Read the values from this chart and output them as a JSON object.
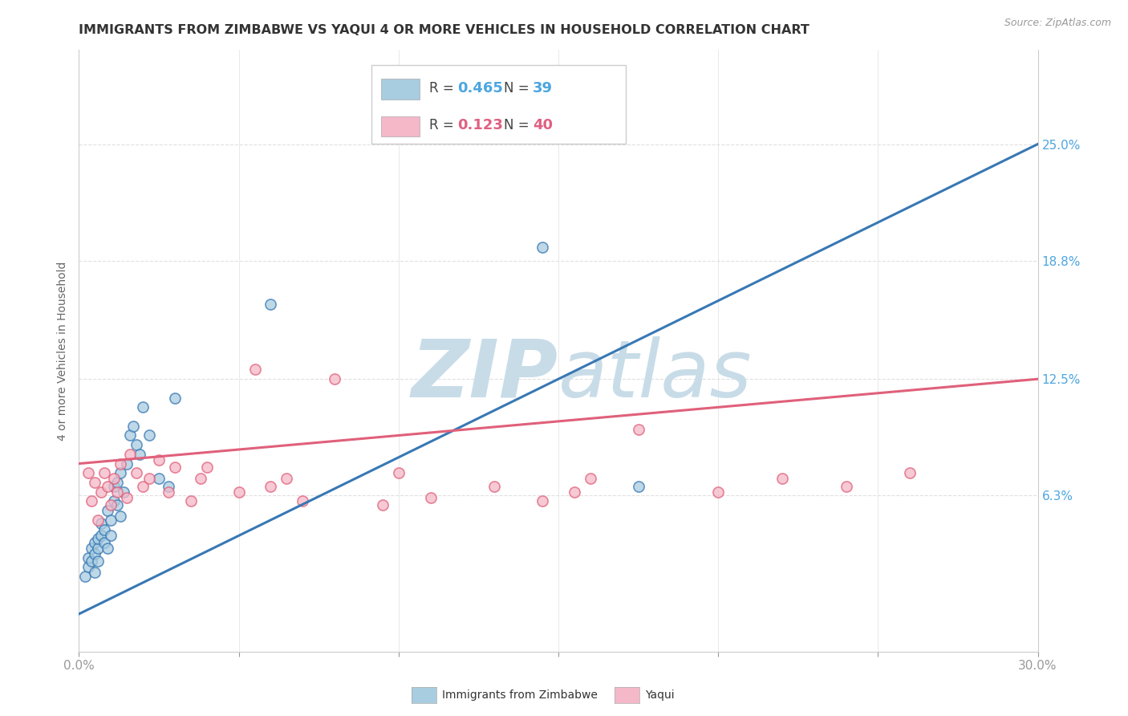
{
  "title": "IMMIGRANTS FROM ZIMBABWE VS YAQUI 4 OR MORE VEHICLES IN HOUSEHOLD CORRELATION CHART",
  "source": "Source: ZipAtlas.com",
  "xlabel": "",
  "ylabel": "4 or more Vehicles in Household",
  "xlim": [
    0.0,
    0.3
  ],
  "ylim": [
    -0.02,
    0.3
  ],
  "xticks": [
    0.0,
    0.05,
    0.1,
    0.15,
    0.2,
    0.25,
    0.3
  ],
  "xticklabels": [
    "0.0%",
    "",
    "",
    "",
    "",
    "",
    "30.0%"
  ],
  "ytick_positions": [
    0.063,
    0.125,
    0.188,
    0.25
  ],
  "yticklabels": [
    "6.3%",
    "12.5%",
    "18.8%",
    "25.0%"
  ],
  "legend_entries": [
    {
      "label": "Immigrants from Zimbabwe",
      "R": "0.465",
      "N": "39",
      "color": "#a8cce0",
      "line_color": "#3878b4"
    },
    {
      "label": "Yaqui",
      "R": "0.123",
      "N": "40",
      "color": "#f4b8c8",
      "line_color": "#e0607a"
    }
  ],
  "series_blue": {
    "x": [
      0.002,
      0.003,
      0.003,
      0.004,
      0.004,
      0.005,
      0.005,
      0.005,
      0.006,
      0.006,
      0.006,
      0.007,
      0.007,
      0.008,
      0.008,
      0.009,
      0.009,
      0.01,
      0.01,
      0.011,
      0.011,
      0.012,
      0.012,
      0.013,
      0.013,
      0.014,
      0.015,
      0.016,
      0.017,
      0.018,
      0.019,
      0.02,
      0.022,
      0.025,
      0.028,
      0.03,
      0.06,
      0.145,
      0.175
    ],
    "y": [
      0.02,
      0.025,
      0.03,
      0.028,
      0.035,
      0.022,
      0.032,
      0.038,
      0.028,
      0.035,
      0.04,
      0.042,
      0.048,
      0.038,
      0.045,
      0.035,
      0.055,
      0.042,
      0.05,
      0.06,
      0.068,
      0.058,
      0.07,
      0.052,
      0.075,
      0.065,
      0.08,
      0.095,
      0.1,
      0.09,
      0.085,
      0.11,
      0.095,
      0.072,
      0.068,
      0.115,
      0.165,
      0.195,
      0.068
    ],
    "trend_x": [
      0.0,
      0.3
    ],
    "trend_y": [
      0.0,
      0.25
    ]
  },
  "series_pink": {
    "x": [
      0.003,
      0.004,
      0.005,
      0.006,
      0.007,
      0.008,
      0.009,
      0.01,
      0.011,
      0.012,
      0.013,
      0.015,
      0.016,
      0.018,
      0.02,
      0.022,
      0.025,
      0.028,
      0.03,
      0.035,
      0.038,
      0.04,
      0.05,
      0.055,
      0.06,
      0.065,
      0.07,
      0.08,
      0.095,
      0.1,
      0.11,
      0.13,
      0.145,
      0.155,
      0.16,
      0.175,
      0.2,
      0.22,
      0.24,
      0.26
    ],
    "y": [
      0.075,
      0.06,
      0.07,
      0.05,
      0.065,
      0.075,
      0.068,
      0.058,
      0.072,
      0.065,
      0.08,
      0.062,
      0.085,
      0.075,
      0.068,
      0.072,
      0.082,
      0.065,
      0.078,
      0.06,
      0.072,
      0.078,
      0.065,
      0.13,
      0.068,
      0.072,
      0.06,
      0.125,
      0.058,
      0.075,
      0.062,
      0.068,
      0.06,
      0.065,
      0.072,
      0.098,
      0.065,
      0.072,
      0.068,
      0.075
    ],
    "trend_x": [
      0.0,
      0.3
    ],
    "trend_y": [
      0.08,
      0.125
    ]
  },
  "watermark_zip": "ZIP",
  "watermark_atlas": "atlas",
  "watermark_color_zip": "#c8dce8",
  "watermark_color_atlas": "#c8dce8",
  "background_color": "#ffffff",
  "grid_color": "#e0e0e0",
  "title_color": "#333333",
  "title_fontsize": 11.5,
  "axis_label_color": "#666666",
  "tick_label_color": "#4da6e0",
  "tick_color_x": "#999999"
}
